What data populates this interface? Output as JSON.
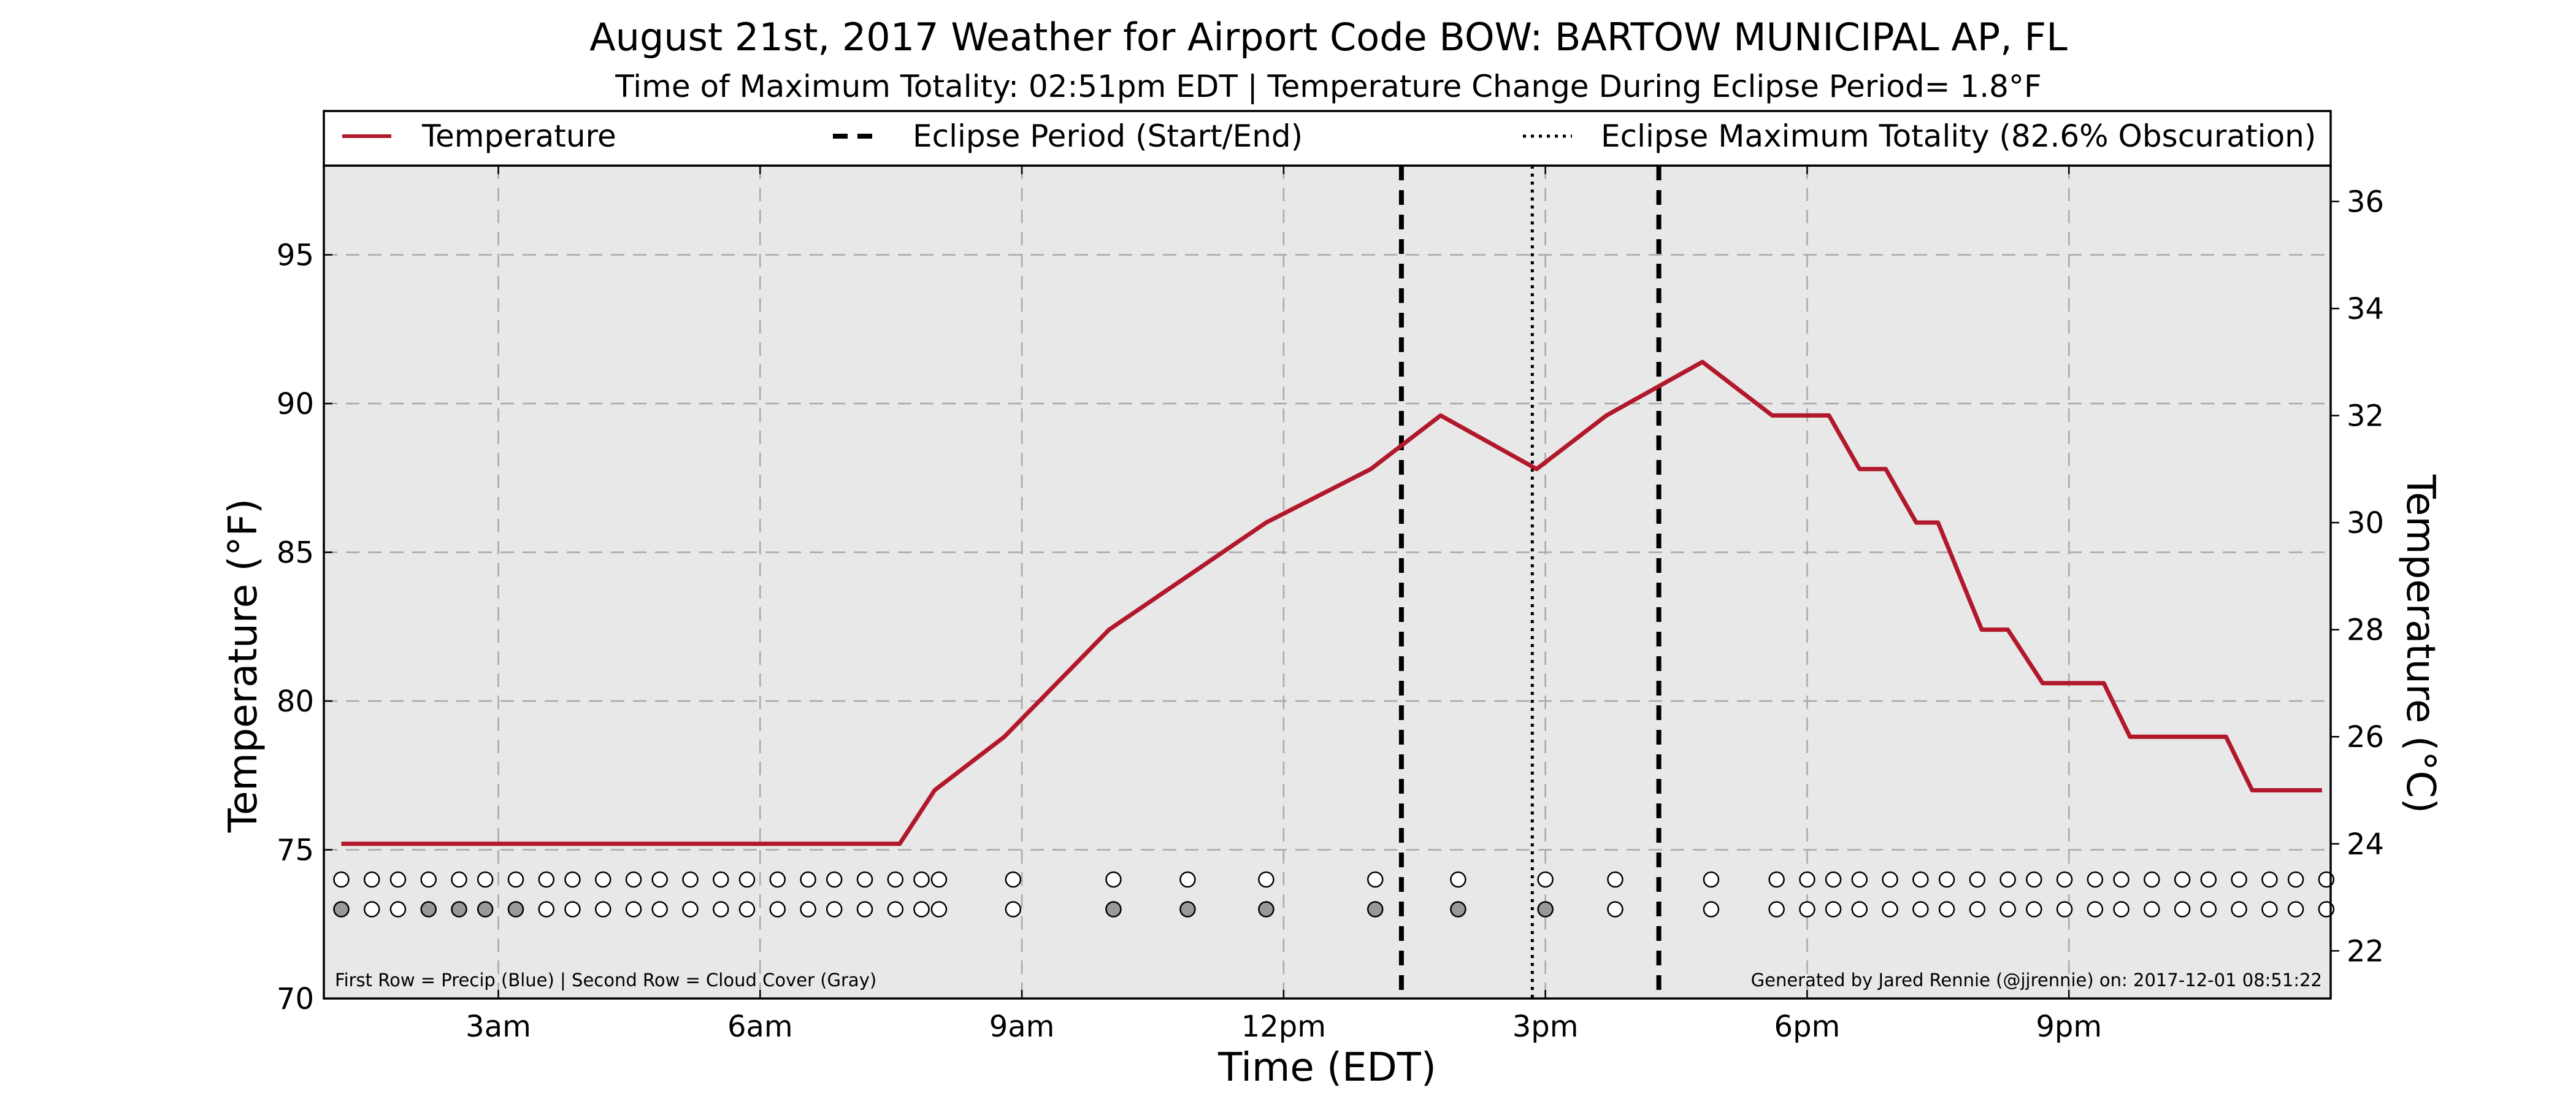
{
  "title": "August 21st, 2017 Weather for Airport Code BOW: BARTOW MUNICIPAL AP, FL",
  "subtitle": "Time of Maximum Totality: 02:51pm EDT | Temperature Change During Eclipse Period= 1.8°F",
  "footnote_left": "First Row = Precip (Blue) | Second Row = Cloud Cover (Gray)",
  "footnote_right": "Generated by Jared Rennie (@jjrennie) on: 2017-12-01 08:51:22",
  "colors": {
    "temperature_line": "#b2182b",
    "plot_background": "#e8e8e8",
    "grid": "#a8a8a8",
    "cloud_filled": "#999999",
    "marker_empty": "#ffffff"
  },
  "chart_data": {
    "type": "line",
    "xlabel": "Time (EDT)",
    "ylabel": "Temperature (°F)",
    "ylabel_right": "Temperature (°C)",
    "xlim": [
      1.0,
      24.0
    ],
    "ylim": [
      70,
      98
    ],
    "ylim_right": [
      21.11,
      36.67
    ],
    "grid": true,
    "legend_position": "top",
    "x_ticks": [
      {
        "value": 3,
        "label": "3am"
      },
      {
        "value": 6,
        "label": "6am"
      },
      {
        "value": 9,
        "label": "9am"
      },
      {
        "value": 12,
        "label": "12pm"
      },
      {
        "value": 15,
        "label": "3pm"
      },
      {
        "value": 18,
        "label": "6pm"
      },
      {
        "value": 21,
        "label": "9pm"
      }
    ],
    "y_ticks": [
      70,
      75,
      80,
      85,
      90,
      95
    ],
    "y_ticks_right": [
      22,
      24,
      26,
      28,
      30,
      32,
      34,
      36
    ],
    "legend": [
      {
        "label": "Temperature",
        "style": "solid"
      },
      {
        "label": "Eclipse Period (Start/End)",
        "style": "dashed"
      },
      {
        "label": "Eclipse Maximum Totality (82.6% Obscuration)",
        "style": "dotted"
      }
    ],
    "series": [
      {
        "name": "Temperature",
        "points": [
          [
            1.2,
            75.2
          ],
          [
            7.6,
            75.2
          ],
          [
            8.0,
            77.0
          ],
          [
            8.8,
            78.8
          ],
          [
            10.0,
            82.4
          ],
          [
            10.9,
            84.2
          ],
          [
            11.8,
            86.0
          ],
          [
            13.0,
            87.8
          ],
          [
            13.8,
            89.6
          ],
          [
            14.9,
            87.8
          ],
          [
            15.7,
            89.6
          ],
          [
            16.8,
            91.4
          ],
          [
            17.6,
            89.6
          ],
          [
            18.25,
            89.6
          ],
          [
            18.6,
            87.8
          ],
          [
            18.9,
            87.8
          ],
          [
            19.25,
            86.0
          ],
          [
            19.5,
            86.0
          ],
          [
            20.0,
            82.4
          ],
          [
            20.3,
            82.4
          ],
          [
            20.7,
            80.6
          ],
          [
            21.4,
            80.6
          ],
          [
            21.7,
            78.8
          ],
          [
            22.8,
            78.8
          ],
          [
            23.1,
            77.0
          ],
          [
            23.9,
            77.0
          ]
        ]
      }
    ],
    "eclipse": {
      "start": 13.35,
      "max_totality": 14.85,
      "end": 16.3,
      "obscuration_percent": 82.6
    },
    "observations": {
      "precip_row_value": 74.0,
      "cloud_row_value": 73.0,
      "times": [
        1.2,
        1.55,
        1.85,
        2.2,
        2.55,
        2.85,
        3.2,
        3.55,
        3.85,
        4.2,
        4.55,
        4.85,
        5.2,
        5.55,
        5.85,
        6.2,
        6.55,
        6.85,
        7.2,
        7.55,
        7.85,
        8.05,
        8.9,
        10.05,
        10.9,
        11.8,
        13.05,
        14.0,
        15.0,
        15.8,
        16.9,
        17.65,
        18.0,
        18.3,
        18.6,
        18.95,
        19.3,
        19.6,
        19.95,
        20.3,
        20.6,
        20.95,
        21.3,
        21.6,
        21.95,
        22.3,
        22.6,
        22.95,
        23.3,
        23.6,
        23.95
      ],
      "precip": [
        0,
        0,
        0,
        0,
        0,
        0,
        0,
        0,
        0,
        0,
        0,
        0,
        0,
        0,
        0,
        0,
        0,
        0,
        0,
        0,
        0,
        0,
        0,
        0,
        0,
        0,
        0,
        0,
        0,
        0,
        0,
        0,
        0,
        0,
        0,
        0,
        0,
        0,
        0,
        0,
        0,
        0,
        0,
        0,
        0,
        0,
        0,
        0,
        0,
        0,
        0
      ],
      "cloud_cover": [
        1,
        0,
        0,
        1,
        1,
        1,
        1,
        0,
        0,
        0,
        0,
        0,
        0,
        0,
        0,
        0,
        0,
        0,
        0,
        0,
        0,
        0,
        0,
        1,
        1,
        1,
        1,
        1,
        1,
        0,
        0,
        0,
        0,
        0,
        0,
        0,
        0,
        0,
        0,
        0,
        0,
        0,
        0,
        0,
        0,
        0,
        0,
        0,
        0,
        0,
        0
      ]
    }
  }
}
